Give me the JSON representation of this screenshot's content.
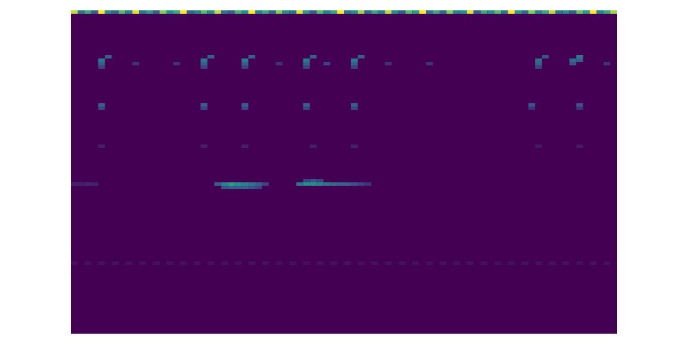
{
  "chart_data": {
    "type": "heatmap",
    "tick_labels": false,
    "xlim": [
      0,
      80
    ],
    "ylim": [
      0,
      94
    ],
    "color_range": [
      0,
      1
    ],
    "cells": [
      [
        0,
        93,
        0.9
      ],
      [
        1,
        93,
        0.4
      ],
      [
        2,
        93,
        0.6
      ],
      [
        3,
        93,
        0.3
      ],
      [
        4,
        93,
        1
      ],
      [
        5,
        93,
        0.5
      ],
      [
        6,
        93,
        0.35
      ],
      [
        7,
        93,
        0.7
      ],
      [
        8,
        93,
        0.45
      ],
      [
        9,
        93,
        0.95
      ],
      [
        10,
        93,
        0.4
      ],
      [
        11,
        93,
        0.55
      ],
      [
        12,
        93,
        0.3
      ],
      [
        13,
        93,
        0.8
      ],
      [
        14,
        93,
        0.5
      ],
      [
        15,
        93,
        0.6
      ],
      [
        16,
        93,
        1
      ],
      [
        17,
        93,
        0.35
      ],
      [
        18,
        93,
        0.45
      ],
      [
        19,
        93,
        0.7
      ],
      [
        20,
        93,
        0.5
      ],
      [
        21,
        93,
        0.9
      ],
      [
        22,
        93,
        0.4
      ],
      [
        23,
        93,
        0.3
      ],
      [
        24,
        93,
        0.65
      ],
      [
        25,
        93,
        0.5
      ],
      [
        26,
        93,
        1
      ],
      [
        27,
        93,
        0.45
      ],
      [
        28,
        93,
        0.6
      ],
      [
        29,
        93,
        0.35
      ],
      [
        30,
        93,
        0.8
      ],
      [
        31,
        93,
        0.5
      ],
      [
        32,
        93,
        0.4
      ],
      [
        33,
        93,
        0.95
      ],
      [
        34,
        93,
        0.55
      ],
      [
        35,
        93,
        0.3
      ],
      [
        36,
        93,
        0.7
      ],
      [
        37,
        93,
        0.45
      ],
      [
        38,
        93,
        0.6
      ],
      [
        39,
        93,
        1
      ],
      [
        40,
        93,
        0.4
      ],
      [
        41,
        93,
        0.5
      ],
      [
        42,
        93,
        0.85
      ],
      [
        43,
        93,
        0.35
      ],
      [
        44,
        93,
        0.6
      ],
      [
        45,
        93,
        0.45
      ],
      [
        46,
        93,
        0.9
      ],
      [
        47,
        93,
        0.5
      ],
      [
        48,
        93,
        0.3
      ],
      [
        49,
        93,
        0.7
      ],
      [
        50,
        93,
        0.55
      ],
      [
        51,
        93,
        1
      ],
      [
        52,
        93,
        0.4
      ],
      [
        53,
        93,
        0.6
      ],
      [
        54,
        93,
        0.35
      ],
      [
        55,
        93,
        0.8
      ],
      [
        56,
        93,
        0.45
      ],
      [
        57,
        93,
        0.5
      ],
      [
        58,
        93,
        0.95
      ],
      [
        59,
        93,
        0.3
      ],
      [
        60,
        93,
        0.6
      ],
      [
        61,
        93,
        0.5
      ],
      [
        62,
        93,
        0.7
      ],
      [
        63,
        93,
        0.4
      ],
      [
        64,
        93,
        1
      ],
      [
        65,
        93,
        0.55
      ],
      [
        66,
        93,
        0.35
      ],
      [
        67,
        93,
        0.8
      ],
      [
        68,
        93,
        0.45
      ],
      [
        69,
        93,
        0.6
      ],
      [
        70,
        93,
        0.9
      ],
      [
        71,
        93,
        0.4
      ],
      [
        72,
        93,
        0.5
      ],
      [
        73,
        93,
        0.3
      ],
      [
        74,
        93,
        0.75
      ],
      [
        75,
        93,
        0.55
      ],
      [
        76,
        93,
        1
      ],
      [
        77,
        93,
        0.45
      ],
      [
        78,
        93,
        0.6
      ],
      [
        79,
        93,
        0.85
      ],
      [
        4,
        79,
        0.4
      ],
      [
        4,
        78,
        0.3
      ],
      [
        5,
        80,
        0.3
      ],
      [
        4,
        77,
        0.2
      ],
      [
        19,
        79,
        0.4
      ],
      [
        19,
        78,
        0.3
      ],
      [
        20,
        80,
        0.3
      ],
      [
        19,
        77,
        0.2
      ],
      [
        25,
        79,
        0.4
      ],
      [
        25,
        78,
        0.3
      ],
      [
        26,
        80,
        0.3
      ],
      [
        25,
        77,
        0.2
      ],
      [
        34,
        79,
        0.4
      ],
      [
        34,
        78,
        0.3
      ],
      [
        35,
        80,
        0.3
      ],
      [
        34,
        77,
        0.2
      ],
      [
        41,
        79,
        0.4
      ],
      [
        41,
        78,
        0.3
      ],
      [
        42,
        80,
        0.3
      ],
      [
        41,
        77,
        0.2
      ],
      [
        68,
        79,
        0.35
      ],
      [
        68,
        78,
        0.3
      ],
      [
        69,
        80,
        0.25
      ],
      [
        68,
        77,
        0.2
      ],
      [
        73,
        79,
        0.35
      ],
      [
        73,
        78,
        0.25
      ],
      [
        74,
        80,
        0.4
      ],
      [
        74,
        79,
        0.3
      ],
      [
        9,
        78,
        0.15
      ],
      [
        15,
        78,
        0.15
      ],
      [
        30,
        78,
        0.15
      ],
      [
        37,
        78,
        0.2
      ],
      [
        46,
        78,
        0.15
      ],
      [
        52,
        78,
        0.15
      ],
      [
        78,
        78,
        0.15
      ],
      [
        4,
        66,
        0.3
      ],
      [
        4,
        65,
        0.2
      ],
      [
        19,
        66,
        0.3
      ],
      [
        19,
        65,
        0.2
      ],
      [
        25,
        66,
        0.3
      ],
      [
        25,
        65,
        0.2
      ],
      [
        34,
        66,
        0.3
      ],
      [
        34,
        65,
        0.2
      ],
      [
        41,
        66,
        0.3
      ],
      [
        41,
        65,
        0.2
      ],
      [
        67,
        66,
        0.25
      ],
      [
        67,
        65,
        0.15
      ],
      [
        74,
        66,
        0.25
      ],
      [
        74,
        65,
        0.15
      ],
      [
        4,
        54,
        0.1
      ],
      [
        19,
        54,
        0.1
      ],
      [
        25,
        54,
        0.1
      ],
      [
        35,
        54,
        0.1
      ],
      [
        41,
        54,
        0.1
      ],
      [
        68,
        54,
        0.08
      ],
      [
        74,
        54,
        0.08
      ],
      [
        0,
        43,
        0.1
      ],
      [
        1,
        43,
        0.1
      ],
      [
        2,
        43,
        0.12
      ],
      [
        3,
        43,
        0.1
      ],
      [
        21,
        43,
        0.3
      ],
      [
        22,
        43,
        0.45
      ],
      [
        23,
        43,
        0.55
      ],
      [
        24,
        43,
        0.5
      ],
      [
        25,
        43,
        0.45
      ],
      [
        26,
        43,
        0.4
      ],
      [
        27,
        43,
        0.3
      ],
      [
        28,
        43,
        0.2
      ],
      [
        22,
        42,
        0.25
      ],
      [
        23,
        42,
        0.3
      ],
      [
        24,
        42,
        0.3
      ],
      [
        25,
        42,
        0.3
      ],
      [
        26,
        42,
        0.25
      ],
      [
        27,
        42,
        0.2
      ],
      [
        33,
        43,
        0.4
      ],
      [
        34,
        43,
        0.5
      ],
      [
        35,
        43,
        0.5
      ],
      [
        36,
        43,
        0.45
      ],
      [
        37,
        43,
        0.4
      ],
      [
        38,
        43,
        0.35
      ],
      [
        39,
        43,
        0.3
      ],
      [
        40,
        43,
        0.3
      ],
      [
        41,
        43,
        0.25
      ],
      [
        42,
        43,
        0.2
      ],
      [
        43,
        43,
        0.15
      ],
      [
        34,
        44,
        0.2
      ],
      [
        35,
        44,
        0.25
      ],
      [
        36,
        44,
        0.2
      ],
      [
        0,
        20,
        0.05
      ],
      [
        2,
        20,
        0.05
      ],
      [
        4,
        20,
        0.05
      ],
      [
        6,
        20,
        0.05
      ],
      [
        8,
        20,
        0.05
      ],
      [
        10,
        20,
        0.05
      ],
      [
        12,
        20,
        0.05
      ],
      [
        14,
        20,
        0.05
      ],
      [
        16,
        20,
        0.05
      ],
      [
        18,
        20,
        0.05
      ],
      [
        20,
        20,
        0.05
      ],
      [
        22,
        20,
        0.05
      ],
      [
        24,
        20,
        0.05
      ],
      [
        26,
        20,
        0.05
      ],
      [
        28,
        20,
        0.05
      ],
      [
        30,
        20,
        0.05
      ],
      [
        32,
        20,
        0.05
      ],
      [
        34,
        20,
        0.05
      ],
      [
        36,
        20,
        0.05
      ],
      [
        38,
        20,
        0.05
      ],
      [
        40,
        20,
        0.05
      ],
      [
        42,
        20,
        0.05
      ],
      [
        44,
        20,
        0.05
      ],
      [
        46,
        20,
        0.05
      ],
      [
        48,
        20,
        0.05
      ],
      [
        50,
        20,
        0.05
      ],
      [
        52,
        20,
        0.05
      ],
      [
        54,
        20,
        0.05
      ],
      [
        56,
        20,
        0.05
      ],
      [
        58,
        20,
        0.05
      ],
      [
        60,
        20,
        0.05
      ],
      [
        62,
        20,
        0.05
      ],
      [
        64,
        20,
        0.05
      ],
      [
        66,
        20,
        0.05
      ],
      [
        68,
        20,
        0.05
      ],
      [
        70,
        20,
        0.05
      ],
      [
        72,
        20,
        0.05
      ],
      [
        74,
        20,
        0.05
      ],
      [
        76,
        20,
        0.05
      ],
      [
        78,
        20,
        0.05
      ]
    ]
  }
}
